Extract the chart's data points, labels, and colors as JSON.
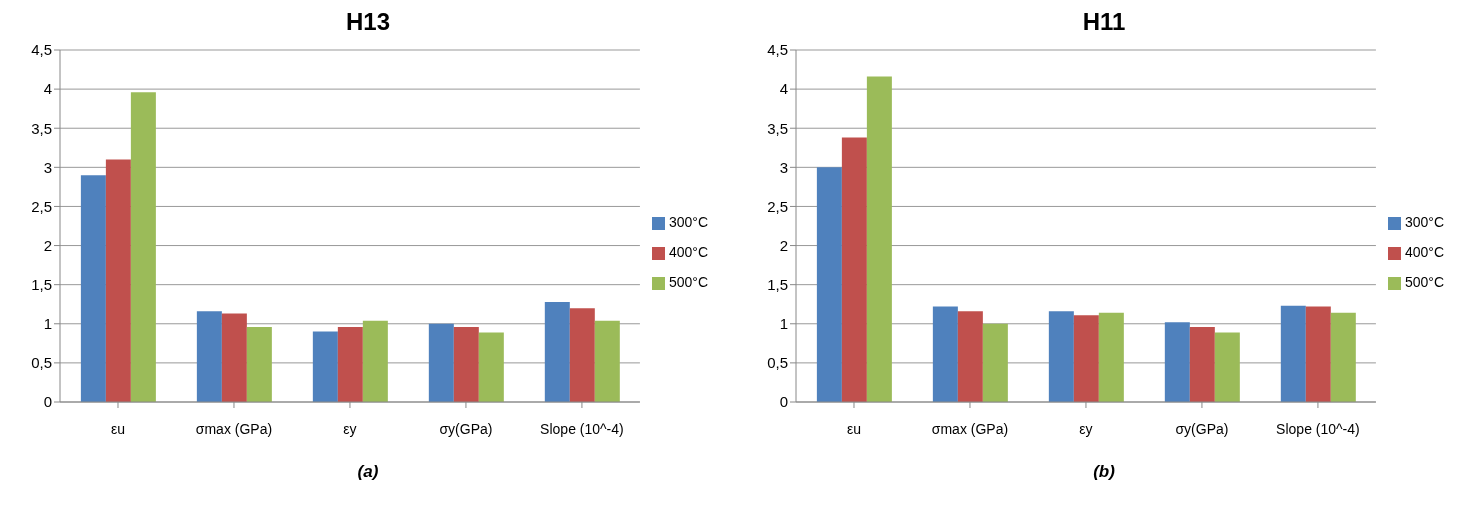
{
  "chart_data": [
    {
      "type": "bar",
      "title": "H13",
      "categories": [
        "εu",
        "σmax (GPa)",
        "εy",
        "σy(GPa)",
        "Slope (10^-4)"
      ],
      "series": [
        {
          "name": "300°C",
          "color": "#4f81bd",
          "values": [
            2.9,
            1.16,
            0.9,
            1.0,
            1.28
          ]
        },
        {
          "name": "400°C",
          "color": "#c0504d",
          "values": [
            3.1,
            1.13,
            0.96,
            0.96,
            1.2
          ]
        },
        {
          "name": "500°C",
          "color": "#9bbb59",
          "values": [
            3.96,
            0.96,
            1.04,
            0.89,
            1.04
          ]
        }
      ],
      "ylim": [
        0,
        4.5
      ],
      "yticks": [
        0,
        {
          "value": 0.5,
          "label": "0,5"
        },
        1,
        {
          "value": 1.5,
          "label": "1,5"
        },
        2,
        {
          "value": 2.5,
          "label": "2,5"
        },
        3,
        {
          "value": 3.5,
          "label": "3,5"
        },
        4,
        {
          "value": 4.5,
          "label": "4,5"
        }
      ],
      "grid": "y",
      "legend": "right",
      "annotations": [
        "(a)"
      ]
    },
    {
      "type": "bar",
      "title": "H11",
      "categories": [
        "εu",
        "σmax (GPa)",
        "εy",
        "σy(GPa)",
        "Slope (10^-4)"
      ],
      "series": [
        {
          "name": "300°C",
          "color": "#4f81bd",
          "values": [
            3.0,
            1.22,
            1.16,
            1.02,
            1.23
          ]
        },
        {
          "name": "400°C",
          "color": "#c0504d",
          "values": [
            3.38,
            1.16,
            1.11,
            0.96,
            1.22
          ]
        },
        {
          "name": "500°C",
          "color": "#9bbb59",
          "values": [
            4.16,
            1.0,
            1.14,
            0.89,
            1.14
          ]
        }
      ],
      "ylim": [
        0,
        4.5
      ],
      "yticks": [
        0,
        {
          "value": 0.5,
          "label": "0,5"
        },
        1,
        {
          "value": 1.5,
          "label": "1,5"
        },
        2,
        {
          "value": 2.5,
          "label": "2,5"
        },
        3,
        {
          "value": 3.5,
          "label": "3,5"
        },
        4,
        {
          "value": 4.5,
          "label": "4,5"
        }
      ],
      "grid": "y",
      "legend": "right",
      "annotations": [
        "(b)"
      ]
    }
  ]
}
